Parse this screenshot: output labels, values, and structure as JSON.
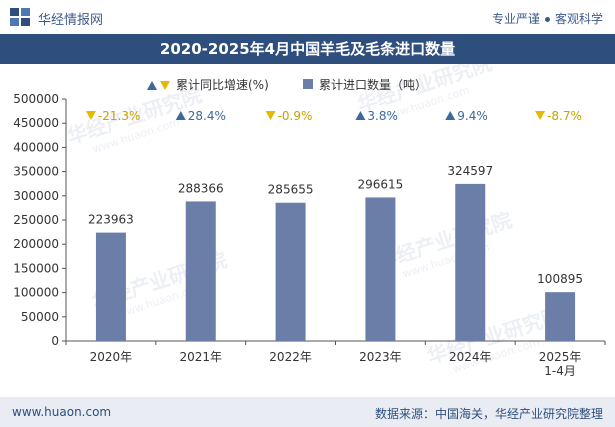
{
  "header": {
    "site_name": "华经情报网",
    "slogan_left": "专业严谨",
    "slogan_right": "客观科学"
  },
  "footer": {
    "url": "www.huaon.com",
    "source": "数据来源：中国海关，华经产业研究院整理"
  },
  "watermark": {
    "text_cn": "华经产业研究院",
    "text_en": "www.huaon.com"
  },
  "colors": {
    "title_bar": "#2e4e7e",
    "bar": "#6b7ea8",
    "up": "#3d6a9a",
    "down": "#e6b800",
    "brand": "#2e4e7e",
    "footer_bg": "#e9edf3"
  },
  "chart_data": {
    "type": "bar",
    "title": "2020-2025年4月中国羊毛及毛条进口数量",
    "legend": {
      "growth_label": "累计同比增速(%)",
      "volume_label": "累计进口数量（吨）",
      "placement": "top-center"
    },
    "categories": [
      "2020年",
      "2021年",
      "2022年",
      "2023年",
      "2024年",
      "2025年\n1-4月"
    ],
    "series": [
      {
        "name": "累计进口数量（吨）",
        "values": [
          223963,
          288366,
          285655,
          296615,
          324597,
          100895
        ]
      }
    ],
    "growth": {
      "name": "累计同比增速(%)",
      "values": [
        -21.3,
        28.4,
        -0.9,
        3.8,
        9.4,
        -8.7
      ],
      "labels": [
        "-21.3%",
        "28.4%",
        "-0.9%",
        "3.8%",
        "9.4%",
        "-8.7%"
      ]
    },
    "ylim": [
      0,
      500000
    ],
    "yticks": [
      0,
      50000,
      100000,
      150000,
      200000,
      250000,
      300000,
      350000,
      400000,
      450000,
      500000
    ],
    "grid": false
  }
}
